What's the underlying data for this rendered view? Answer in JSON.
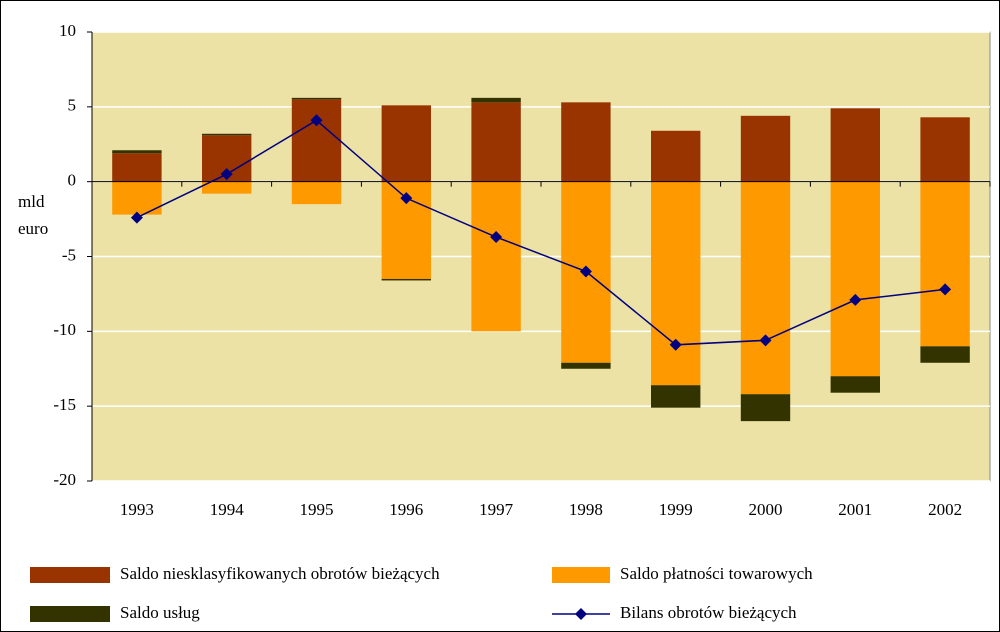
{
  "chart_data": {
    "type": "bar",
    "stacked": true,
    "ylabel": "mld euro",
    "categories": [
      "1993",
      "1994",
      "1995",
      "1996",
      "1997",
      "1998",
      "1999",
      "2000",
      "2001",
      "2002"
    ],
    "series": [
      {
        "name": "Saldo niesklasyfikowanych obrotów bieżących",
        "type": "bar",
        "color": "#993300",
        "values": [
          1.9,
          3.1,
          5.5,
          5.1,
          5.3,
          5.3,
          3.4,
          4.4,
          4.9,
          4.3
        ]
      },
      {
        "name": "Saldo płatności towarowych",
        "type": "bar",
        "color": "#ff9900",
        "values": [
          -2.2,
          -0.8,
          -1.5,
          -6.5,
          -10.0,
          -12.1,
          -13.6,
          -14.2,
          -13.0,
          -11.0
        ]
      },
      {
        "name": "Saldo usług",
        "type": "bar",
        "color": "#333300",
        "values": [
          0.2,
          0.1,
          0.1,
          -0.1,
          0.3,
          -0.4,
          -1.5,
          -1.8,
          -1.1,
          -1.1
        ]
      },
      {
        "name": "Bilans obrotów bieżących",
        "type": "line",
        "color": "#000080",
        "values": [
          -2.4,
          0.5,
          4.1,
          -1.1,
          -3.7,
          -6.0,
          -10.9,
          -10.6,
          -7.9,
          -7.2
        ]
      }
    ],
    "ylim": [
      -20,
      10
    ],
    "yticks": [
      -20,
      -15,
      -10,
      -5,
      0,
      5,
      10
    ],
    "grid": true,
    "legend": "bottom"
  }
}
